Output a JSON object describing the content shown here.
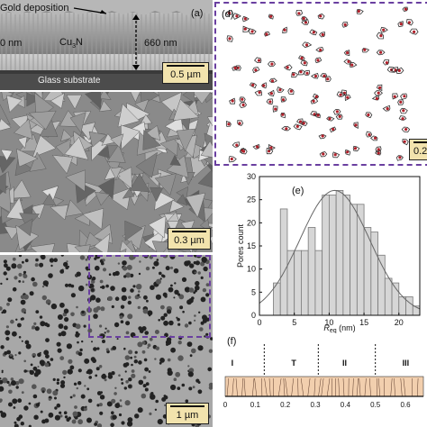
{
  "panel_a": {
    "label": "(a)",
    "gold_label": "Gold deposition",
    "left_thickness": "0 nm",
    "material": "Cu",
    "material_sub": "3",
    "material_suffix": "N",
    "thickness": "660 nm",
    "substrate": "Glass substrate",
    "scale": "0.5 µm"
  },
  "panel_b": {
    "scale": "0.3 µm"
  },
  "panel_c": {
    "scale": "1 µm",
    "highlight_color": "#6a3fa0"
  },
  "panel_d": {
    "label": "(d)",
    "scale": "0.2",
    "border_color": "#6a3fa0",
    "outline_color": "#b0202a"
  },
  "panel_e": {
    "label": "(e)",
    "ylabel": "Pores count",
    "xlabel_main": "R",
    "xlabel_sub": "eq",
    "xlabel_unit": " (nm)"
  },
  "panel_f": {
    "label": "(f)",
    "zones": [
      "I",
      "T",
      "II",
      "III"
    ],
    "ticks": [
      "0",
      "0.1",
      "0.2",
      "0.3",
      "0.4",
      "0.5",
      "0.6"
    ]
  },
  "chart_data": {
    "type": "bar",
    "title": "",
    "xlabel": "Req (nm)",
    "ylabel": "Pores count",
    "xlim": [
      0,
      23
    ],
    "ylim": [
      0,
      30
    ],
    "x_ticks": [
      0,
      5,
      10,
      15,
      20
    ],
    "y_ticks": [
      0,
      5,
      10,
      15,
      20,
      25,
      30
    ],
    "bin_width": 1,
    "bin_starts": [
      2,
      3,
      4,
      5,
      6,
      7,
      8,
      9,
      10,
      11,
      12,
      13,
      14,
      15,
      16,
      17,
      18,
      19,
      20,
      21,
      22
    ],
    "values": [
      7,
      23,
      14,
      14,
      14,
      19,
      14,
      26,
      26,
      27,
      26,
      24,
      24,
      19,
      18,
      13,
      8,
      7,
      4,
      4,
      2
    ],
    "fit": {
      "type": "gaussian",
      "mean": 10.8,
      "sigma": 5.0,
      "peak": 27
    },
    "grid": false,
    "legend": "none"
  }
}
